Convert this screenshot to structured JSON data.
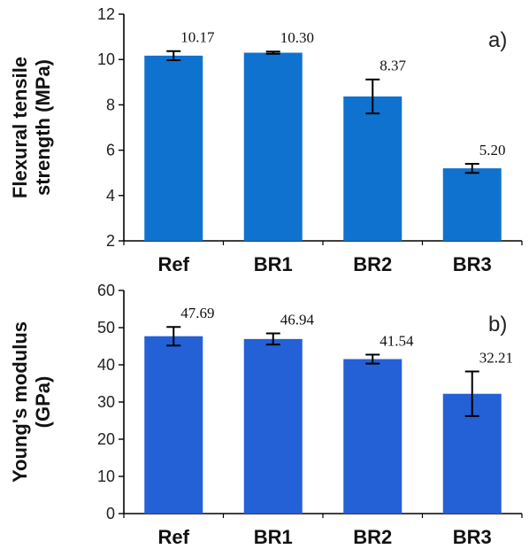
{
  "chart_data": [
    {
      "type": "bar",
      "panel_label": "a)",
      "ylabel_lines": [
        "Flexural tensile",
        "strength (MPa)"
      ],
      "categories": [
        "Ref",
        "BR1",
        "BR2",
        "BR3"
      ],
      "values": [
        10.17,
        10.3,
        8.37,
        5.2
      ],
      "value_labels": [
        "10.17",
        "10.30",
        "8.37",
        "5.20"
      ],
      "errors": [
        0.2,
        0.05,
        0.75,
        0.2
      ],
      "ylim": [
        2,
        12
      ],
      "yticks": [
        "2",
        "4",
        "6",
        "8",
        "10",
        "12"
      ],
      "bar_color": "#0f72cf"
    },
    {
      "type": "bar",
      "panel_label": "b)",
      "ylabel_lines": [
        "Young's modulus",
        "(GPa)"
      ],
      "categories": [
        "Ref",
        "BR1",
        "BR2",
        "BR3"
      ],
      "values": [
        47.69,
        46.94,
        41.54,
        32.21
      ],
      "value_labels": [
        "47.69",
        "46.94",
        "41.54",
        "32.21"
      ],
      "errors": [
        2.5,
        1.5,
        1.2,
        6.0
      ],
      "ylim": [
        0,
        60
      ],
      "yticks": [
        "0",
        "10",
        "20",
        "30",
        "40",
        "50",
        "60"
      ],
      "bar_color": "#2460d6"
    }
  ]
}
